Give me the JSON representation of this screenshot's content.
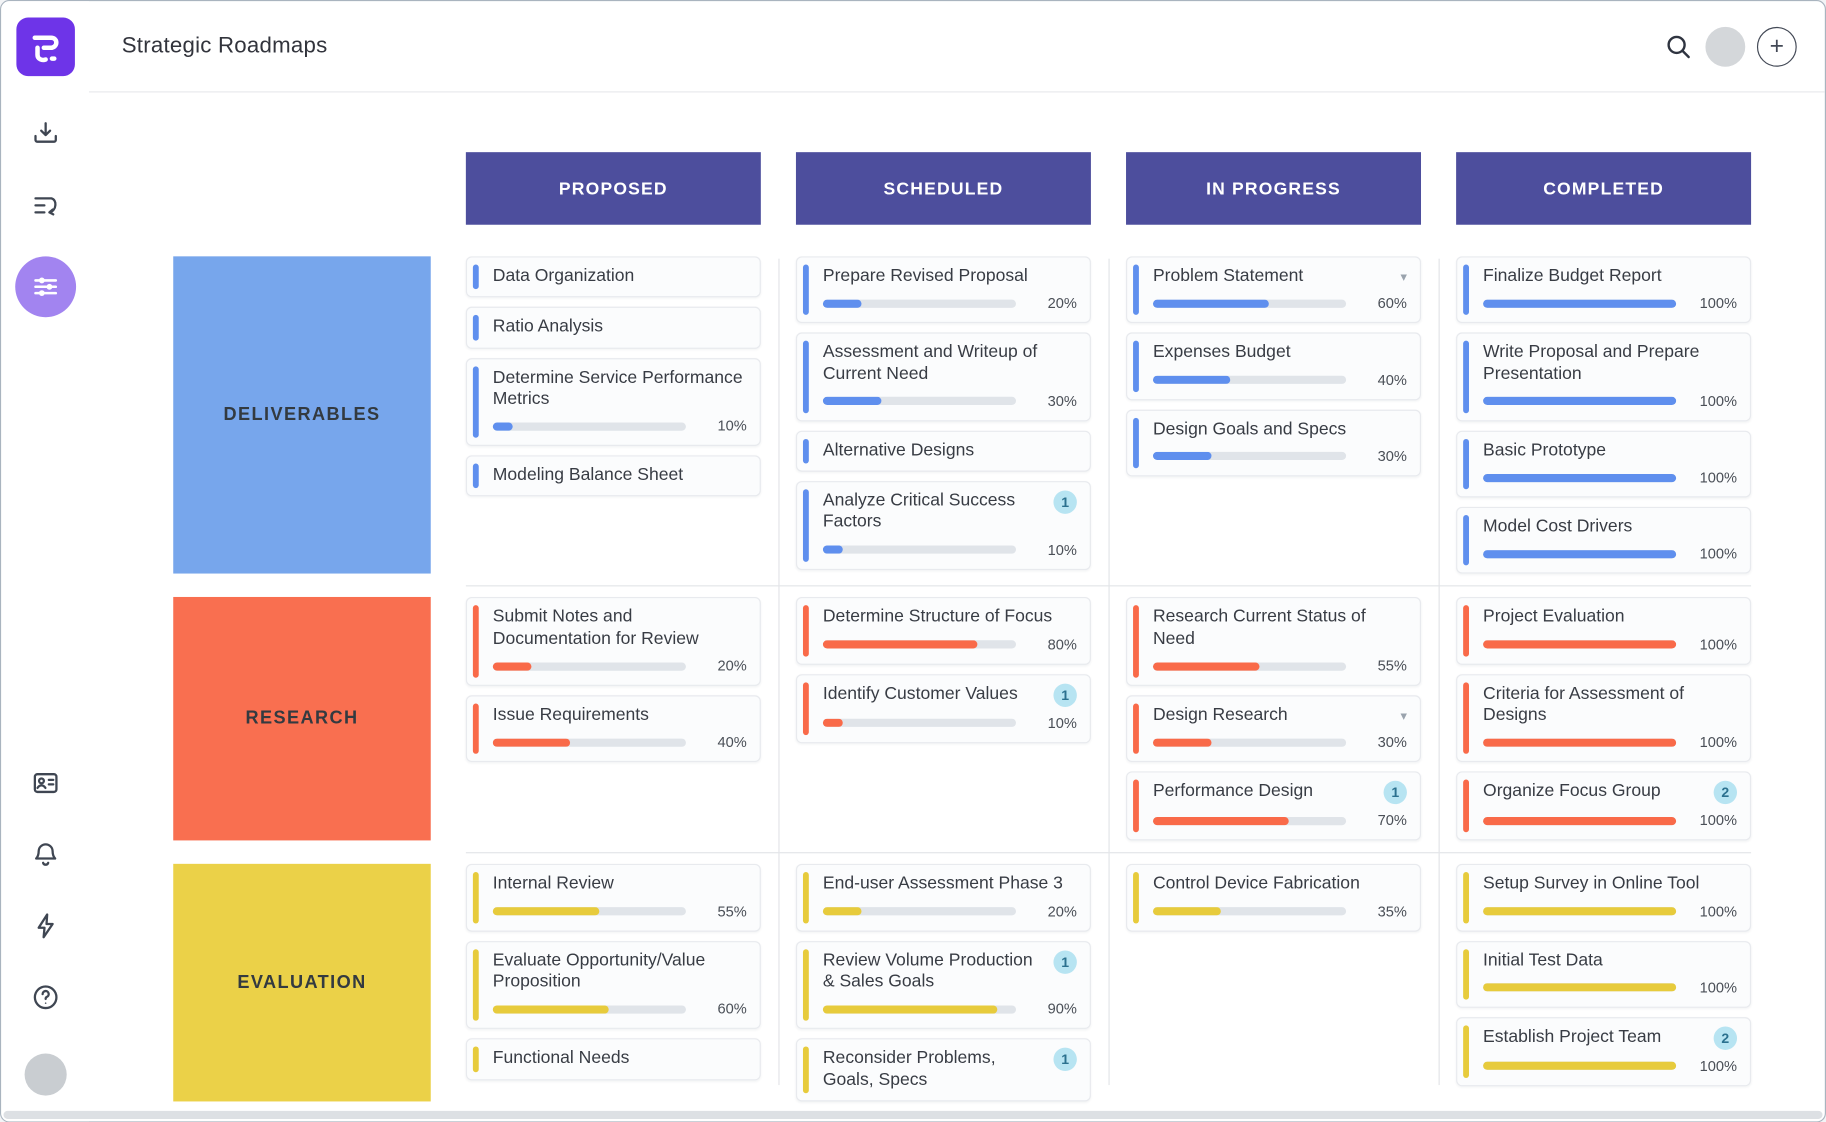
{
  "header": {
    "title": "Strategic Roadmaps",
    "icons": {
      "search": "search-icon",
      "account": "user-avatar",
      "add": "plus-button"
    }
  },
  "sidebar": {
    "icons": [
      {
        "name": "app-logo",
        "active": false
      },
      {
        "name": "import-icon",
        "active": false
      },
      {
        "name": "roadmap-list-icon",
        "active": false
      },
      {
        "name": "swimlane-view-icon",
        "active": true
      },
      {
        "name": "accounts-card-icon",
        "active": false
      },
      {
        "name": "notifications-bell-icon",
        "active": false
      },
      {
        "name": "activity-lightning-icon",
        "active": false
      },
      {
        "name": "help-icon",
        "active": false
      },
      {
        "name": "user-avatar",
        "active": false
      }
    ]
  },
  "colors": {
    "column_header_bg": "#4d4e9d",
    "column_header_text": "#ffffff",
    "card_bg": "#fbfcfd",
    "card_border": "#e8eaee",
    "progress_track": "#e0e4e9",
    "badge_bg": "#b7e4f2",
    "badge_text": "#2b718f",
    "active_sidebar_circle": "#a284f0",
    "logo_bg": "#6e34e8"
  },
  "columns": [
    {
      "label": "PROPOSED"
    },
    {
      "label": "SCHEDULED"
    },
    {
      "label": "IN PROGRESS"
    },
    {
      "label": "COMPLETED"
    }
  ],
  "lanes": [
    {
      "label": "DELIVERABLES",
      "block_color": "#77a6ec",
      "accent_color": "#5f8fee",
      "cells": [
        [
          {
            "title": "Data Organization"
          },
          {
            "title": "Ratio Analysis"
          },
          {
            "title": "Determine Service Performance Metrics",
            "progress": 10
          },
          {
            "title": "Modeling Balance Sheet"
          }
        ],
        [
          {
            "title": "Prepare Revised Proposal",
            "progress": 20
          },
          {
            "title": "Assessment and Writeup of Current Need",
            "progress": 30
          },
          {
            "title": "Alternative Designs"
          },
          {
            "title": "Analyze Critical Success Factors",
            "progress": 10,
            "badge": 1
          }
        ],
        [
          {
            "title": "Problem Statement",
            "progress": 60,
            "caret": true
          },
          {
            "title": "Expenses Budget",
            "progress": 40
          },
          {
            "title": "Design Goals and Specs",
            "progress": 30
          }
        ],
        [
          {
            "title": "Finalize Budget Report",
            "progress": 100
          },
          {
            "title": "Write Proposal and Prepare Presentation",
            "progress": 100
          },
          {
            "title": "Basic Prototype",
            "progress": 100
          },
          {
            "title": "Model Cost Drivers",
            "progress": 100
          }
        ]
      ]
    },
    {
      "label": "RESEARCH",
      "block_color": "#f96f50",
      "accent_color": "#f96a49",
      "cells": [
        [
          {
            "title": "Submit Notes and Documentation for Review",
            "progress": 20
          },
          {
            "title": "Issue Requirements",
            "progress": 40
          }
        ],
        [
          {
            "title": "Determine Structure of Focus",
            "progress": 80
          },
          {
            "title": "Identify Customer Values",
            "progress": 10,
            "badge": 1
          }
        ],
        [
          {
            "title": "Research Current Status of Need",
            "progress": 55
          },
          {
            "title": "Design Research",
            "progress": 30,
            "caret": true
          },
          {
            "title": "Performance Design",
            "progress": 70,
            "badge": 1
          }
        ],
        [
          {
            "title": "Project Evaluation",
            "progress": 100
          },
          {
            "title": "Criteria for Assessment of Designs",
            "progress": 100
          },
          {
            "title": "Organize Focus Group",
            "progress": 100,
            "badge": 2
          }
        ]
      ]
    },
    {
      "label": "EVALUATION",
      "block_color": "#ebd148",
      "accent_color": "#e7cb3c",
      "cells": [
        [
          {
            "title": "Internal Review",
            "progress": 55
          },
          {
            "title": "Evaluate Opportunity/Value Proposition",
            "progress": 60
          },
          {
            "title": "Functional Needs"
          }
        ],
        [
          {
            "title": "End-user Assessment Phase 3",
            "progress": 20
          },
          {
            "title": "Review Volume Production & Sales Goals",
            "progress": 90,
            "badge": 1
          },
          {
            "title": "Reconsider Problems, Goals, Specs",
            "badge": 1
          }
        ],
        [
          {
            "title": "Control Device Fabrication",
            "progress": 35
          }
        ],
        [
          {
            "title": "Setup Survey in Online Tool",
            "progress": 100
          },
          {
            "title": "Initial Test Data",
            "progress": 100
          },
          {
            "title": "Establish Project Team",
            "progress": 100,
            "badge": 2
          }
        ]
      ]
    }
  ]
}
